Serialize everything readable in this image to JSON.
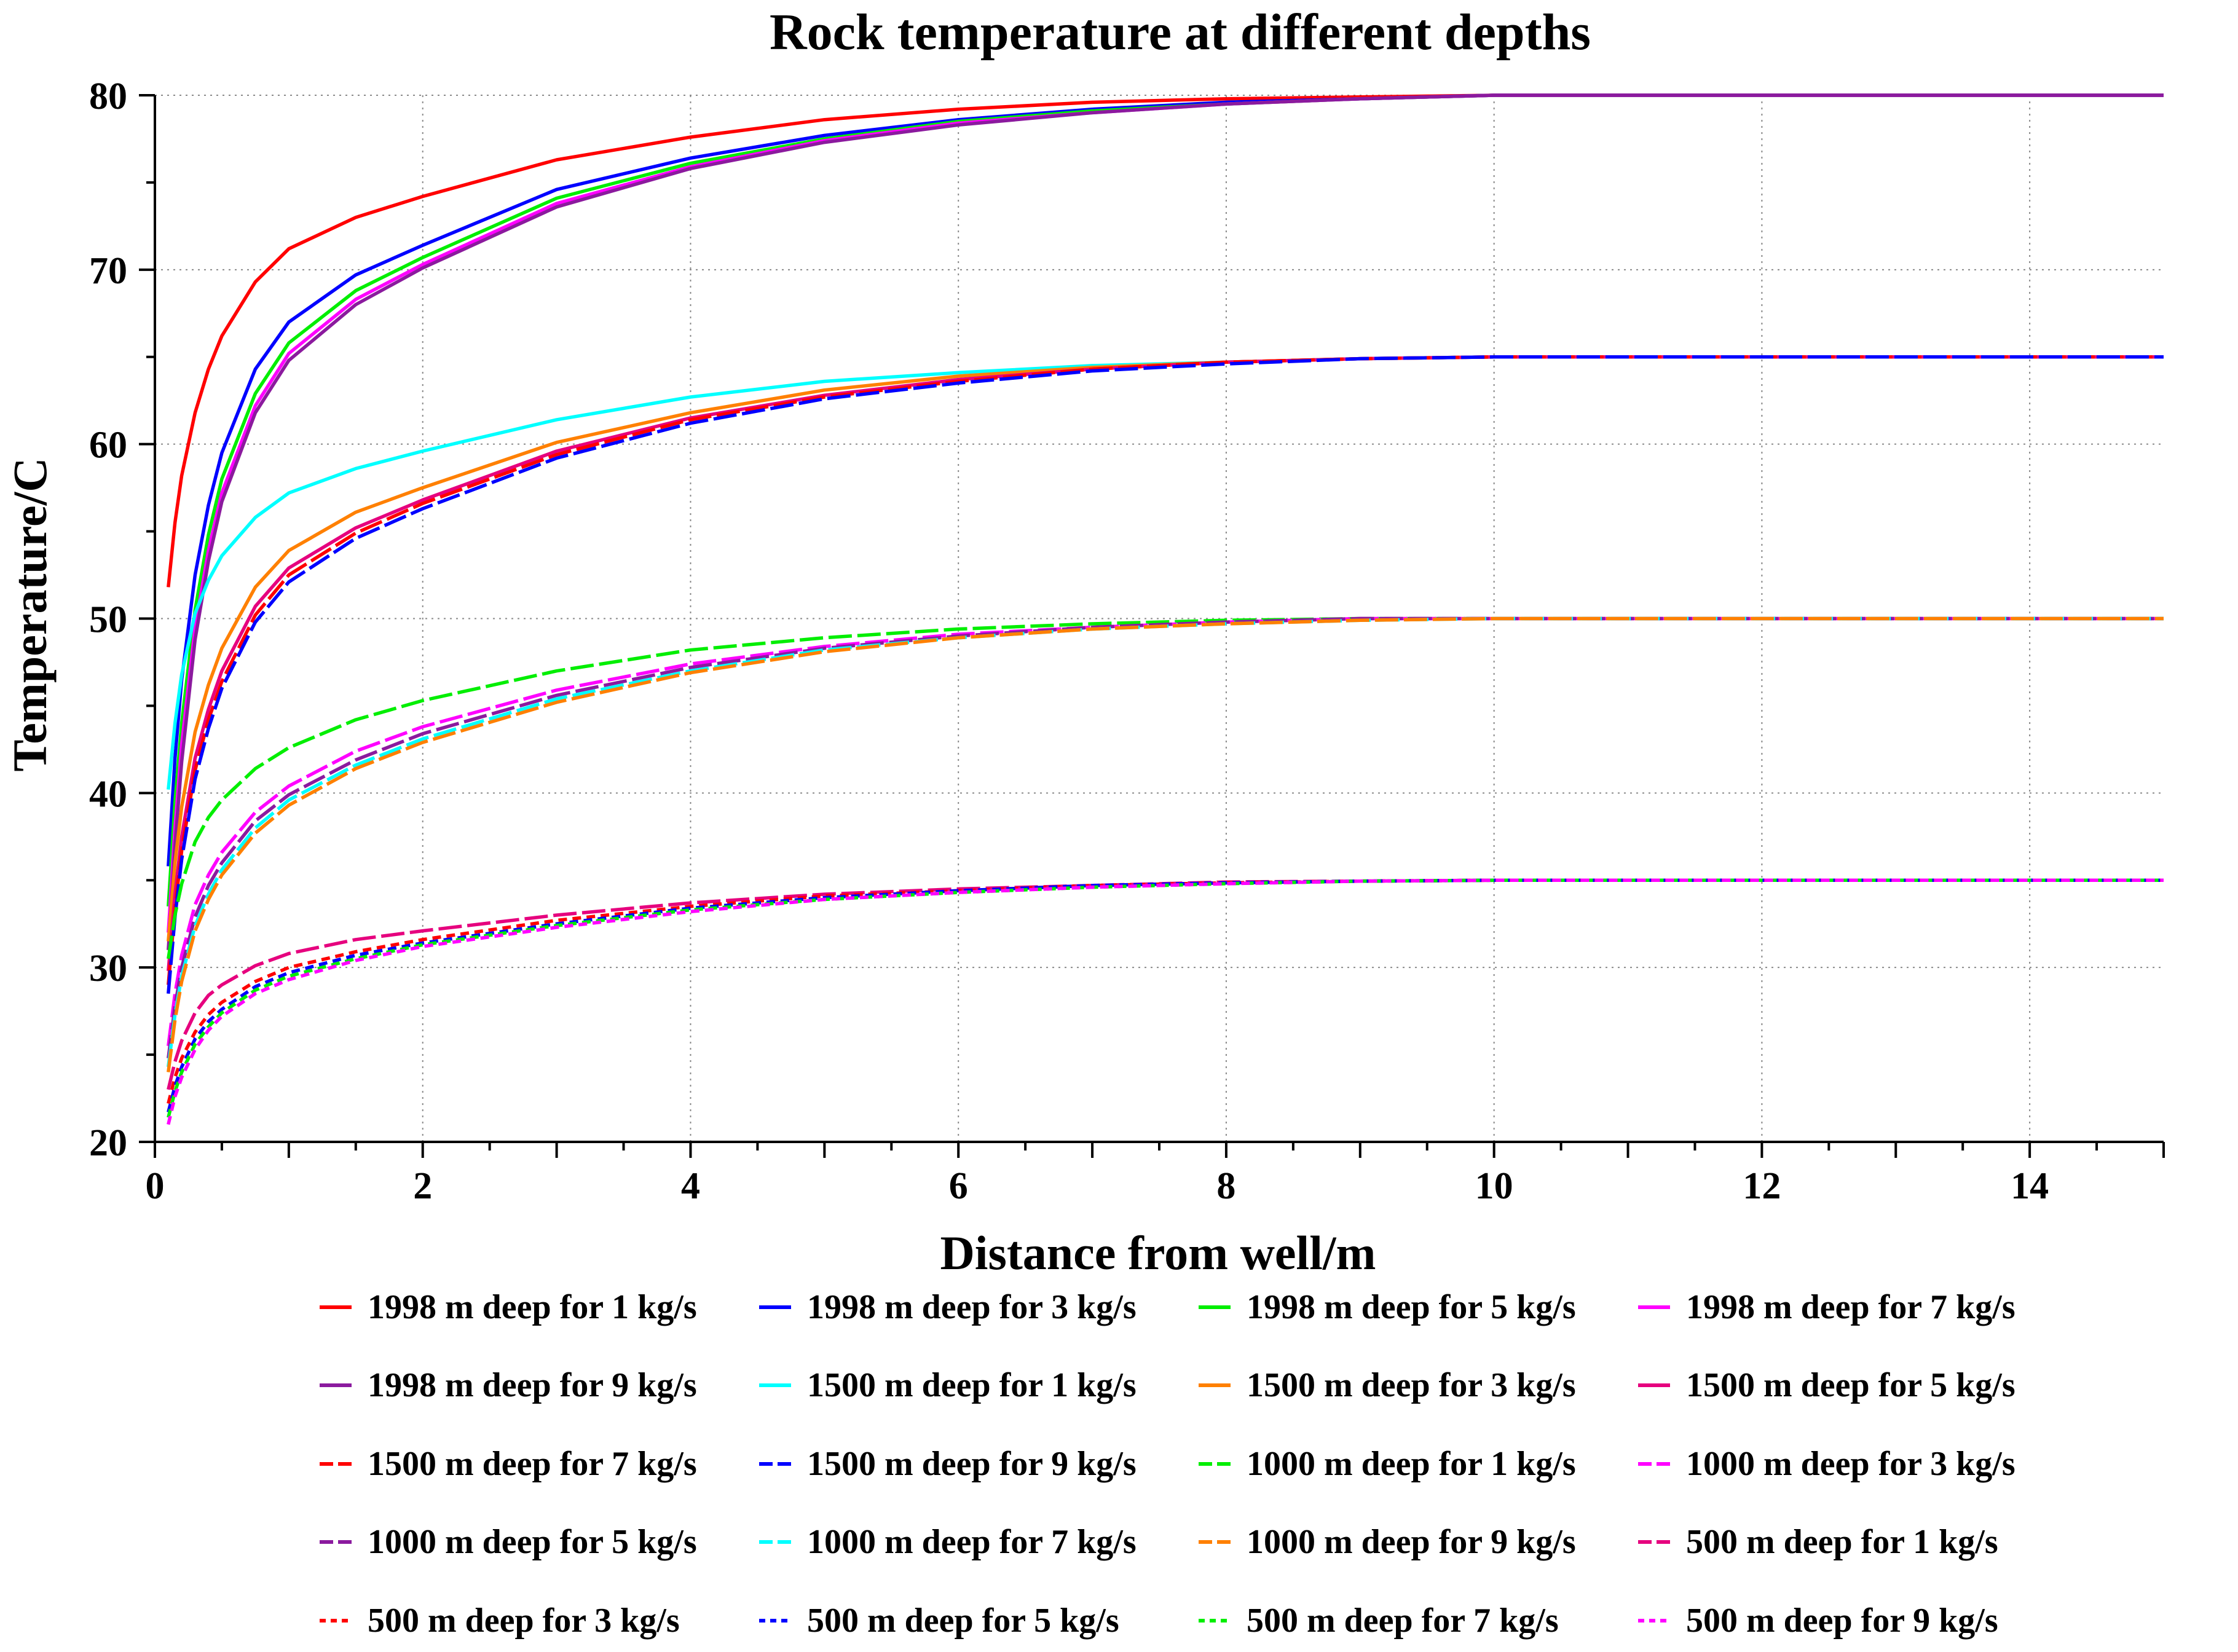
{
  "chart_data": {
    "type": "line",
    "title": "Rock temperature at different depths",
    "xlabel": "Distance from well/m",
    "ylabel": "Temperature/C",
    "xlim": [
      0,
      15
    ],
    "ylim": [
      20,
      80
    ],
    "xticks": [
      0,
      2,
      4,
      6,
      8,
      10,
      12,
      14
    ],
    "yticks": [
      20,
      30,
      40,
      50,
      60,
      70,
      80
    ],
    "grid": true,
    "legend_position": "bottom",
    "x": [
      0.1,
      0.15,
      0.2,
      0.3,
      0.4,
      0.5,
      0.75,
      1,
      1.5,
      2,
      3,
      4,
      5,
      6,
      7,
      8,
      9,
      10,
      11,
      12,
      13,
      14,
      15
    ],
    "series": [
      {
        "name": "1998 m deep for 1 kg/s",
        "color": "#ff0000",
        "dash": "solid",
        "values": [
          51.8,
          55.5,
          58.2,
          61.8,
          64.3,
          66.2,
          69.3,
          71.2,
          73.0,
          74.2,
          76.3,
          77.6,
          78.6,
          79.2,
          79.6,
          79.8,
          79.9,
          80,
          80,
          80,
          80,
          80,
          80
        ]
      },
      {
        "name": "1998 m deep for 3 kg/s",
        "color": "#0000ff",
        "dash": "solid",
        "values": [
          35.8,
          42.0,
          46.5,
          52.5,
          56.5,
          59.5,
          64.3,
          67.0,
          69.7,
          71.4,
          74.6,
          76.4,
          77.7,
          78.6,
          79.2,
          79.6,
          79.8,
          80,
          80,
          80,
          80,
          80,
          80
        ]
      },
      {
        "name": "1998 m deep for 5 kg/s",
        "color": "#00ee00",
        "dash": "solid",
        "values": [
          33.5,
          39.5,
          44.0,
          50.5,
          54.8,
          58.0,
          62.9,
          65.8,
          68.8,
          70.7,
          74.1,
          76.1,
          77.5,
          78.5,
          79.1,
          79.5,
          79.8,
          80,
          80,
          80,
          80,
          80,
          80
        ]
      },
      {
        "name": "1998 m deep for 7 kg/s",
        "color": "#ff00ff",
        "dash": "solid",
        "values": [
          32.0,
          38.0,
          42.8,
          49.5,
          53.9,
          57.2,
          62.2,
          65.2,
          68.3,
          70.3,
          73.8,
          75.9,
          77.4,
          78.4,
          79.0,
          79.5,
          79.8,
          80,
          80,
          80,
          80,
          80,
          80
        ]
      },
      {
        "name": "1998 m deep for 9 kg/s",
        "color": "#8b1a9e",
        "dash": "solid",
        "values": [
          31.0,
          37.0,
          41.8,
          48.8,
          53.3,
          56.7,
          61.8,
          64.8,
          68.0,
          70.1,
          73.6,
          75.8,
          77.3,
          78.3,
          79.0,
          79.5,
          79.8,
          80,
          80,
          80,
          80,
          80,
          80
        ]
      },
      {
        "name": "1500 m deep for 1 kg/s",
        "color": "#00ffff",
        "dash": "solid",
        "values": [
          40.2,
          44.0,
          46.8,
          50.3,
          52.2,
          53.6,
          55.8,
          57.2,
          58.6,
          59.6,
          61.4,
          62.7,
          63.6,
          64.1,
          64.5,
          64.7,
          64.9,
          65,
          65,
          65,
          65,
          65,
          65
        ]
      },
      {
        "name": "1500 m deep for 3 kg/s",
        "color": "#ff8000",
        "dash": "solid",
        "values": [
          31.5,
          36.0,
          39.2,
          43.5,
          46.2,
          48.3,
          51.8,
          53.9,
          56.1,
          57.5,
          60.1,
          61.8,
          63.1,
          63.9,
          64.4,
          64.7,
          64.9,
          65,
          65,
          65,
          65,
          65,
          65
        ]
      },
      {
        "name": "1500 m deep for 5 kg/s",
        "color": "#e6007e",
        "dash": "solid",
        "values": [
          29.8,
          34.2,
          37.5,
          42.0,
          44.8,
          47.0,
          50.7,
          52.9,
          55.2,
          56.8,
          59.6,
          61.5,
          62.8,
          63.7,
          64.3,
          64.7,
          64.9,
          65,
          65,
          65,
          65,
          65,
          65
        ]
      },
      {
        "name": "1500 m deep for 7 kg/s",
        "color": "#ff0000",
        "dash": "longdash",
        "values": [
          29.0,
          33.4,
          36.7,
          41.3,
          44.2,
          46.4,
          50.2,
          52.5,
          54.9,
          56.6,
          59.4,
          61.4,
          62.7,
          63.6,
          64.3,
          64.7,
          64.9,
          65,
          65,
          65,
          65,
          65,
          65
        ]
      },
      {
        "name": "1500 m deep for 9 kg/s",
        "color": "#0000ff",
        "dash": "longdash",
        "values": [
          28.5,
          32.9,
          36.2,
          40.8,
          43.7,
          46.0,
          49.8,
          52.1,
          54.6,
          56.3,
          59.2,
          61.2,
          62.6,
          63.5,
          64.2,
          64.6,
          64.9,
          65,
          65,
          65,
          65,
          65,
          65
        ]
      },
      {
        "name": "1000 m deep for 1 kg/s",
        "color": "#00ee00",
        "dash": "longdash",
        "values": [
          30.5,
          33.0,
          34.8,
          37.2,
          38.6,
          39.6,
          41.4,
          42.6,
          44.2,
          45.3,
          47.0,
          48.2,
          48.9,
          49.4,
          49.7,
          49.9,
          50.0,
          50,
          50,
          50,
          50,
          50,
          50
        ]
      },
      {
        "name": "1000 m deep for 3 kg/s",
        "color": "#ff00ff",
        "dash": "longdash",
        "values": [
          25.5,
          28.5,
          30.7,
          33.6,
          35.3,
          36.6,
          38.9,
          40.4,
          42.4,
          43.8,
          45.9,
          47.4,
          48.4,
          49.1,
          49.5,
          49.8,
          50.0,
          50,
          50,
          50,
          50,
          50,
          50
        ]
      },
      {
        "name": "1000 m deep for 5 kg/s",
        "color": "#8b1a9e",
        "dash": "longdash",
        "values": [
          24.8,
          27.8,
          30.0,
          32.9,
          34.7,
          36.0,
          38.4,
          39.9,
          41.9,
          43.4,
          45.6,
          47.2,
          48.3,
          49.0,
          49.5,
          49.8,
          50.0,
          50,
          50,
          50,
          50,
          50,
          50
        ]
      },
      {
        "name": "1000 m deep for 7 kg/s",
        "color": "#00ffff",
        "dash": "longdash",
        "values": [
          24.3,
          27.3,
          29.5,
          32.4,
          34.2,
          35.6,
          38.0,
          39.6,
          41.6,
          43.1,
          45.4,
          47.0,
          48.2,
          48.9,
          49.4,
          49.7,
          49.9,
          50,
          50,
          50,
          50,
          50,
          50
        ]
      },
      {
        "name": "1000 m deep for 9 kg/s",
        "color": "#ff8000",
        "dash": "longdash",
        "values": [
          24.0,
          27.0,
          29.2,
          32.1,
          33.9,
          35.3,
          37.7,
          39.3,
          41.4,
          42.9,
          45.2,
          46.9,
          48.1,
          48.9,
          49.4,
          49.7,
          49.9,
          50,
          50,
          50,
          50,
          50,
          50
        ]
      },
      {
        "name": "500 m deep for 1 kg/s",
        "color": "#e6007e",
        "dash": "longdash",
        "values": [
          23.0,
          24.6,
          25.8,
          27.4,
          28.4,
          29.0,
          30.1,
          30.8,
          31.6,
          32.1,
          33.0,
          33.7,
          34.2,
          34.5,
          34.7,
          34.9,
          34.95,
          35,
          35,
          35,
          35,
          35,
          35
        ]
      },
      {
        "name": "500 m deep for 3 kg/s",
        "color": "#ff0000",
        "dash": "dash",
        "values": [
          22.2,
          23.7,
          24.8,
          26.3,
          27.3,
          28.0,
          29.2,
          30.0,
          30.9,
          31.6,
          32.7,
          33.5,
          34.1,
          34.4,
          34.7,
          34.85,
          34.95,
          35,
          35,
          35,
          35,
          35,
          35
        ]
      },
      {
        "name": "500 m deep for 5 kg/s",
        "color": "#0000ff",
        "dash": "dash",
        "values": [
          21.7,
          23.2,
          24.3,
          25.9,
          26.9,
          27.6,
          28.9,
          29.7,
          30.7,
          31.4,
          32.5,
          33.4,
          34.0,
          34.4,
          34.7,
          34.85,
          34.95,
          35,
          35,
          35,
          35,
          35,
          35
        ]
      },
      {
        "name": "500 m deep for 7 kg/s",
        "color": "#00ee00",
        "dash": "dash",
        "values": [
          21.4,
          22.9,
          24.0,
          25.6,
          26.6,
          27.4,
          28.7,
          29.5,
          30.5,
          31.3,
          32.4,
          33.3,
          33.9,
          34.3,
          34.6,
          34.8,
          34.95,
          35,
          35,
          35,
          35,
          35,
          35
        ]
      },
      {
        "name": "500 m deep for 9 kg/s",
        "color": "#ff00ff",
        "dash": "dash",
        "values": [
          21.0,
          22.6,
          23.7,
          25.3,
          26.4,
          27.2,
          28.5,
          29.3,
          30.4,
          31.2,
          32.3,
          33.2,
          33.9,
          34.3,
          34.6,
          34.8,
          34.95,
          35,
          35,
          35,
          35,
          35,
          35
        ]
      }
    ]
  }
}
